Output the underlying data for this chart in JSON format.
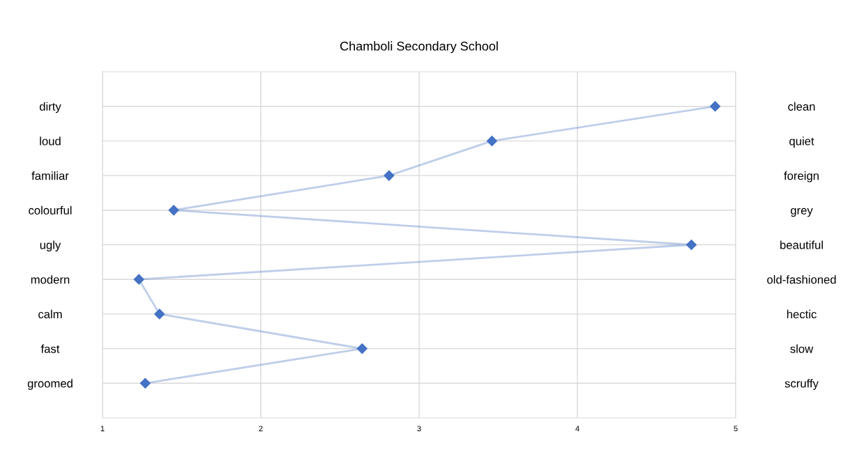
{
  "chart_data": {
    "type": "line",
    "orientation": "horizontal",
    "title": "Chamboli Secondary School",
    "categories": [
      "dirty",
      "loud",
      "familiar",
      "colourful",
      "ugly",
      "modern",
      "calm",
      "fast",
      "groomed"
    ],
    "y2_categories": [
      "clean",
      "quiet",
      "foreign",
      "grey",
      "beautiful",
      "old-fashioned",
      "hectic",
      "slow",
      "scruffy"
    ],
    "series": [
      {
        "color": "#4472c4",
        "values": [
          4.87,
          3.46,
          2.81,
          1.45,
          4.72,
          1.23,
          1.36,
          2.64,
          1.27
        ]
      }
    ],
    "xlim": [
      1,
      5
    ],
    "xticks": [
      1,
      2,
      3,
      4,
      5
    ],
    "grid": true,
    "marker": "diamond",
    "line_style": "solid"
  }
}
